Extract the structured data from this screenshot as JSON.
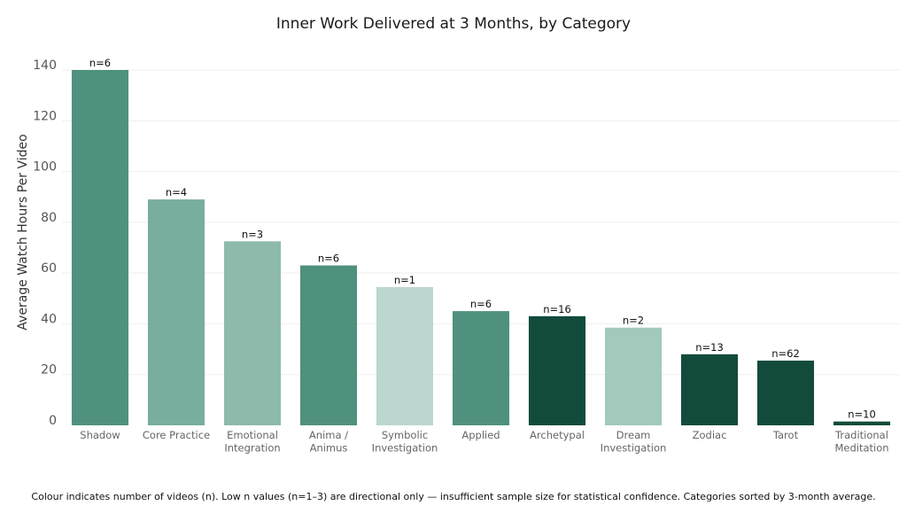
{
  "chart_data": {
    "type": "bar",
    "title": "Inner Work Delivered at 3 Months, by Category",
    "xlabel": "",
    "ylabel": "Average Watch Hours Per Video",
    "ylim": [
      0,
      140
    ],
    "yticks": [
      0,
      20,
      40,
      60,
      80,
      100,
      120,
      140
    ],
    "grid": true,
    "categories": [
      [
        "Shadow"
      ],
      [
        "Core Practice"
      ],
      [
        "Emotional",
        "Integration"
      ],
      [
        "Anima /",
        "Animus"
      ],
      [
        "Symbolic",
        "Investigation"
      ],
      [
        "Applied"
      ],
      [
        "Archetypal"
      ],
      [
        "Dream",
        "Investigation"
      ],
      [
        "Zodiac"
      ],
      [
        "Tarot"
      ],
      [
        "Traditional",
        "Meditation"
      ]
    ],
    "values": [
      140,
      89,
      72.5,
      63,
      54.5,
      45,
      43,
      38.5,
      28,
      25.5,
      1.5
    ],
    "n_labels": [
      "n=6",
      "n=4",
      "n=3",
      "n=6",
      "n=1",
      "n=6",
      "n=16",
      "n=2",
      "n=13",
      "n=62",
      "n=10"
    ],
    "colors": [
      "#4f917e",
      "#78ae9e",
      "#8dbaab",
      "#4f917e",
      "#bcd7cf",
      "#4f917e",
      "#124b3c",
      "#a3c8bc",
      "#124b3c",
      "#124b3c",
      "#124b3c"
    ],
    "footnote": "Colour indicates number of videos (n). Low n values (n=1–3) are directional only — insufficient sample size for statistical confidence. Categories sorted by 3-month average."
  }
}
